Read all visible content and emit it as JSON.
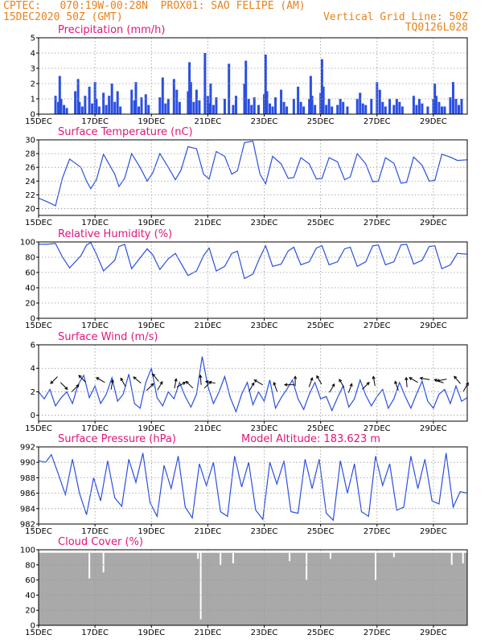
{
  "header": {
    "line1_left": "CPTEC:   070:19W-00:28N  PROX01: SAO FELIPE (AM)",
    "line2_left": "15DEC2020 50Z (GMT)",
    "line2_right": "Vertical Grid Line: 50Z",
    "line3_right": "TQ0126L028"
  },
  "colors": {
    "header": "#e8821c",
    "title": "#e0167a",
    "series": "#2b4fe0",
    "cloud": "#a9a9a9",
    "grid": "#999999"
  },
  "panels": [
    {
      "title": "Precipitation  (mm/h)",
      "extra": ""
    },
    {
      "title": "Surface Temperature  (nC)",
      "extra": ""
    },
    {
      "title": "Relative Humidity  (%)",
      "extra": ""
    },
    {
      "title": "Surface Wind  (m/s)",
      "extra": ""
    },
    {
      "title": "Surface Pressure  (hPa)",
      "extra": "Model Altitude: 183.623  m"
    },
    {
      "title": "Cloud Cover  (%)",
      "extra": ""
    }
  ],
  "x_tick_labels": [
    "15DEC",
    "17DEC",
    "19DEC",
    "21DEC",
    "23DEC",
    "25DEC",
    "27DEC",
    "29DEC"
  ],
  "x_tick_days": [
    0,
    2,
    4,
    6,
    8,
    10,
    12,
    14
  ],
  "x_range_days": [
    0,
    15.2
  ],
  "chart_data": [
    {
      "type": "bar",
      "name": "Precipitation",
      "ylabel": "mm/h",
      "ylim": [
        0,
        5
      ],
      "yticks": [
        0,
        1,
        2,
        3,
        4,
        5
      ],
      "x_days": [
        0.6,
        0.7,
        0.75,
        0.8,
        0.9,
        1.0,
        1.3,
        1.4,
        1.45,
        1.55,
        1.65,
        1.8,
        1.9,
        2.0,
        2.05,
        2.15,
        2.3,
        2.4,
        2.5,
        2.6,
        2.7,
        2.8,
        2.9,
        3.3,
        3.4,
        3.45,
        3.55,
        3.65,
        3.8,
        3.9,
        4.3,
        4.4,
        4.5,
        4.6,
        4.8,
        4.9,
        5.0,
        5.3,
        5.35,
        5.4,
        5.5,
        5.6,
        5.7,
        5.9,
        6.0,
        6.05,
        6.1,
        6.2,
        6.3,
        6.6,
        6.75,
        6.9,
        7.0,
        7.3,
        7.35,
        7.45,
        7.55,
        7.65,
        7.8,
        8.0,
        8.05,
        8.1,
        8.2,
        8.3,
        8.4,
        8.6,
        8.7,
        8.8,
        9.05,
        9.2,
        9.3,
        9.4,
        9.6,
        9.65,
        9.7,
        9.8,
        10.0,
        10.05,
        10.1,
        10.2,
        10.3,
        10.4,
        10.6,
        10.7,
        10.8,
        10.95,
        11.3,
        11.4,
        11.5,
        11.6,
        11.8,
        12.0,
        12.1,
        12.2,
        12.3,
        12.45,
        12.6,
        12.7,
        12.8,
        12.9,
        13.3,
        13.4,
        13.5,
        13.6,
        13.8,
        14.0,
        14.05,
        14.1,
        14.2,
        14.3,
        14.4,
        14.6,
        14.7,
        14.8,
        14.9,
        15.0
      ],
      "values": [
        1.2,
        0.8,
        2.5,
        1.0,
        0.6,
        0.4,
        1.5,
        2.3,
        0.8,
        0.5,
        1.2,
        1.8,
        0.7,
        2.1,
        1.0,
        0.5,
        1.4,
        0.6,
        1.2,
        2.0,
        0.8,
        1.5,
        0.5,
        1.6,
        0.9,
        2.1,
        0.5,
        1.1,
        1.3,
        0.6,
        1.1,
        2.4,
        0.7,
        1.0,
        2.3,
        1.6,
        0.8,
        1.5,
        3.4,
        2.1,
        0.8,
        1.6,
        0.9,
        4.0,
        1.2,
        0.7,
        2.0,
        0.6,
        1.1,
        1.0,
        3.3,
        0.6,
        1.2,
        2.0,
        3.5,
        1.0,
        0.6,
        1.1,
        0.6,
        1.3,
        3.9,
        1.5,
        0.7,
        0.5,
        1.1,
        1.6,
        0.8,
        0.5,
        1.0,
        1.8,
        0.8,
        0.5,
        1.0,
        2.5,
        1.2,
        0.6,
        1.4,
        3.6,
        1.8,
        0.6,
        1.0,
        0.5,
        0.6,
        1.0,
        0.8,
        0.5,
        1.0,
        1.4,
        0.7,
        0.6,
        1.0,
        2.1,
        1.6,
        0.8,
        0.5,
        1.0,
        0.6,
        1.0,
        0.8,
        0.5,
        1.2,
        0.6,
        1.0,
        0.7,
        0.5,
        1.0,
        2.0,
        1.2,
        0.8,
        0.5,
        0.5,
        1.1,
        2.1,
        1.0,
        0.6,
        1.0
      ]
    },
    {
      "type": "line",
      "name": "Surface Temperature",
      "ylabel": "nC",
      "ylim": [
        19,
        30
      ],
      "yticks": [
        20,
        22,
        24,
        26,
        28,
        30
      ],
      "x_days": [
        0,
        0.3,
        0.6,
        0.85,
        1.1,
        1.5,
        1.7,
        1.85,
        2.05,
        2.3,
        2.7,
        2.85,
        3.05,
        3.3,
        3.6,
        3.85,
        4.05,
        4.3,
        4.6,
        4.85,
        5.05,
        5.3,
        5.6,
        5.85,
        6.05,
        6.3,
        6.6,
        6.85,
        7.05,
        7.3,
        7.6,
        7.85,
        8.05,
        8.3,
        8.6,
        8.85,
        9.05,
        9.3,
        9.6,
        9.85,
        10.05,
        10.3,
        10.6,
        10.85,
        11.05,
        11.3,
        11.6,
        11.85,
        12.05,
        12.3,
        12.6,
        12.85,
        13.05,
        13.3,
        13.6,
        13.85,
        14.05,
        14.3,
        14.6,
        14.85,
        15.2
      ],
      "values": [
        21.5,
        21.0,
        20.4,
        24.5,
        27.2,
        26.0,
        24.0,
        22.9,
        24.2,
        27.9,
        25.0,
        23.2,
        24.4,
        28.0,
        26.0,
        24.0,
        25.2,
        28.0,
        26.0,
        24.2,
        25.6,
        29.0,
        28.7,
        25.0,
        24.3,
        28.3,
        27.6,
        25.0,
        25.5,
        29.6,
        29.8,
        25.0,
        23.6,
        27.6,
        26.5,
        24.4,
        24.5,
        27.4,
        26.5,
        24.3,
        24.4,
        27.4,
        26.8,
        24.2,
        24.6,
        28.0,
        26.5,
        23.9,
        24.0,
        27.4,
        26.6,
        23.7,
        23.8,
        27.5,
        26.3,
        24.0,
        24.1,
        27.9,
        27.5,
        27.0,
        27.1
      ]
    },
    {
      "type": "line",
      "name": "Relative Humidity",
      "ylabel": "%",
      "ylim": [
        0,
        100
      ],
      "yticks": [
        0,
        20,
        40,
        60,
        80,
        100
      ],
      "x_days": [
        0,
        0.3,
        0.6,
        0.85,
        1.1,
        1.5,
        1.7,
        1.85,
        2.05,
        2.3,
        2.7,
        2.85,
        3.05,
        3.3,
        3.6,
        3.85,
        4.05,
        4.3,
        4.6,
        4.85,
        5.05,
        5.3,
        5.6,
        5.85,
        6.05,
        6.3,
        6.6,
        6.85,
        7.05,
        7.3,
        7.6,
        7.85,
        8.05,
        8.3,
        8.6,
        8.85,
        9.05,
        9.3,
        9.6,
        9.85,
        10.05,
        10.3,
        10.6,
        10.85,
        11.05,
        11.3,
        11.6,
        11.85,
        12.05,
        12.3,
        12.6,
        12.85,
        13.05,
        13.3,
        13.6,
        13.85,
        14.05,
        14.3,
        14.6,
        14.85,
        15.2
      ],
      "values": [
        97,
        97,
        98,
        80,
        66,
        82,
        96,
        99,
        84,
        62,
        76,
        94,
        97,
        65,
        79,
        91,
        83,
        64,
        78,
        85,
        72,
        56,
        62,
        82,
        92,
        62,
        68,
        85,
        88,
        52,
        58,
        80,
        95,
        68,
        71,
        88,
        93,
        70,
        74,
        92,
        95,
        70,
        74,
        91,
        93,
        68,
        74,
        95,
        96,
        70,
        74,
        96,
        97,
        71,
        76,
        94,
        95,
        65,
        70,
        85,
        84
      ]
    },
    {
      "type": "line",
      "name": "Surface Wind",
      "ylabel": "m/s",
      "ylim": [
        -0.5,
        6
      ],
      "yticks": [
        0,
        2,
        4,
        6
      ],
      "x_days": [
        0,
        0.2,
        0.4,
        0.6,
        0.8,
        1.0,
        1.2,
        1.4,
        1.6,
        1.8,
        2.0,
        2.2,
        2.4,
        2.6,
        2.8,
        3.0,
        3.2,
        3.4,
        3.6,
        3.8,
        4.0,
        4.2,
        4.4,
        4.6,
        4.8,
        5.0,
        5.2,
        5.4,
        5.6,
        5.8,
        6.0,
        6.2,
        6.4,
        6.6,
        6.8,
        7.0,
        7.2,
        7.4,
        7.6,
        7.8,
        8.0,
        8.2,
        8.4,
        8.6,
        8.8,
        9.0,
        9.2,
        9.4,
        9.6,
        9.8,
        10.0,
        10.2,
        10.4,
        10.6,
        10.8,
        11.0,
        11.2,
        11.4,
        11.6,
        11.8,
        12.0,
        12.2,
        12.4,
        12.6,
        12.8,
        13.0,
        13.2,
        13.4,
        13.6,
        13.8,
        14.0,
        14.2,
        14.4,
        14.6,
        14.8,
        15.0,
        15.2
      ],
      "values": [
        2.0,
        1.4,
        2.2,
        0.8,
        1.5,
        2.0,
        1.0,
        2.6,
        3.4,
        1.5,
        2.5,
        1.0,
        1.8,
        3.2,
        1.2,
        1.8,
        3.5,
        1.0,
        0.6,
        2.8,
        4.0,
        1.5,
        0.8,
        2.0,
        1.4,
        2.8,
        1.6,
        0.7,
        1.8,
        5.0,
        2.5,
        1.0,
        2.0,
        3.3,
        1.5,
        0.3,
        1.8,
        2.8,
        0.9,
        2.0,
        1.2,
        3.0,
        0.6,
        1.5,
        2.2,
        3.0,
        1.4,
        0.5,
        1.8,
        2.8,
        1.4,
        1.6,
        0.4,
        1.5,
        2.5,
        0.7,
        1.4,
        3.0,
        1.7,
        0.8,
        1.6,
        2.2,
        0.6,
        1.4,
        2.8,
        1.6,
        0.6,
        1.8,
        2.9,
        1.2,
        0.6,
        1.8,
        2.2,
        1.0,
        2.5,
        1.2,
        1.5
      ]
    },
    {
      "type": "line",
      "name": "Surface Pressure",
      "ylabel": "hPa",
      "ylim": [
        982,
        992
      ],
      "yticks": [
        982,
        984,
        986,
        988,
        990,
        992
      ],
      "x_days": [
        0,
        0.25,
        0.45,
        0.7,
        0.95,
        1.2,
        1.45,
        1.7,
        1.95,
        2.2,
        2.45,
        2.7,
        2.95,
        3.2,
        3.45,
        3.7,
        3.95,
        4.2,
        4.45,
        4.7,
        4.95,
        5.2,
        5.45,
        5.7,
        5.95,
        6.2,
        6.45,
        6.7,
        6.95,
        7.2,
        7.45,
        7.7,
        7.95,
        8.2,
        8.45,
        8.7,
        8.95,
        9.2,
        9.45,
        9.7,
        9.95,
        10.2,
        10.45,
        10.7,
        10.95,
        11.2,
        11.45,
        11.7,
        11.95,
        12.2,
        12.45,
        12.7,
        12.95,
        13.2,
        13.45,
        13.7,
        13.95,
        14.2,
        14.45,
        14.7,
        14.95,
        15.2
      ],
      "values": [
        990.2,
        990.0,
        991.0,
        988.5,
        985.8,
        990.4,
        986.0,
        983.2,
        988.0,
        985.0,
        990.2,
        985.4,
        984.3,
        990.4,
        987.4,
        991.2,
        984.8,
        983.0,
        989.6,
        986.6,
        990.8,
        984.2,
        982.8,
        989.8,
        987.0,
        990.0,
        983.6,
        983.0,
        990.8,
        986.8,
        990.0,
        983.8,
        982.6,
        990.0,
        987.2,
        990.2,
        983.6,
        983.4,
        990.4,
        986.6,
        990.4,
        983.4,
        982.5,
        990.2,
        986.0,
        989.8,
        983.6,
        983.0,
        990.8,
        987.0,
        989.8,
        983.8,
        984.2,
        990.8,
        986.6,
        990.4,
        985.0,
        984.6,
        991.2,
        984.2,
        986.2,
        986.0
      ]
    },
    {
      "type": "bar",
      "name": "Cloud Cover",
      "ylabel": "%",
      "ylim": [
        0,
        100
      ],
      "yticks": [
        0,
        20,
        40,
        60,
        80,
        100
      ],
      "notes_dips_days": [
        1.8,
        2.3,
        5.65,
        5.75,
        6.45,
        6.9,
        8.9,
        9.5,
        10.35,
        11.95,
        12.6,
        14.65,
        15.05
      ],
      "dip_values": [
        62,
        70,
        88,
        8,
        80,
        82,
        85,
        60,
        88,
        60,
        90,
        80,
        82
      ],
      "base_value": 96
    }
  ],
  "wind_arrows": [
    {
      "day": 0.55,
      "deg": 225,
      "y": 3.0
    },
    {
      "day": 0.9,
      "deg": 135,
      "y": 2.5
    },
    {
      "day": 1.3,
      "deg": 45,
      "y": 2.3
    },
    {
      "day": 1.55,
      "deg": 315,
      "y": 3.1
    },
    {
      "day": 2.2,
      "deg": 300,
      "y": 3.0
    },
    {
      "day": 2.6,
      "deg": 10,
      "y": 2.6
    },
    {
      "day": 3.0,
      "deg": 330,
      "y": 2.8
    },
    {
      "day": 3.5,
      "deg": 310,
      "y": 3.0
    },
    {
      "day": 3.95,
      "deg": 45,
      "y": 2.4
    },
    {
      "day": 4.15,
      "deg": 320,
      "y": 3.2
    },
    {
      "day": 4.3,
      "deg": 30,
      "y": 2.5
    },
    {
      "day": 4.85,
      "deg": 10,
      "y": 2.7
    },
    {
      "day": 5.05,
      "deg": 60,
      "y": 2.6
    },
    {
      "day": 5.35,
      "deg": 315,
      "y": 2.6
    },
    {
      "day": 5.75,
      "deg": 355,
      "y": 3.0
    },
    {
      "day": 6.0,
      "deg": 45,
      "y": 2.6
    },
    {
      "day": 6.1,
      "deg": 280,
      "y": 2.8
    },
    {
      "day": 7.55,
      "deg": 30,
      "y": 2.4
    },
    {
      "day": 7.8,
      "deg": 300,
      "y": 2.8
    },
    {
      "day": 8.4,
      "deg": 340,
      "y": 2.4
    },
    {
      "day": 8.9,
      "deg": 270,
      "y": 2.6
    },
    {
      "day": 9.1,
      "deg": 0,
      "y": 2.9
    },
    {
      "day": 9.65,
      "deg": 20,
      "y": 2.8
    },
    {
      "day": 9.95,
      "deg": 330,
      "y": 3.0
    },
    {
      "day": 10.4,
      "deg": 30,
      "y": 2.3
    },
    {
      "day": 10.75,
      "deg": 330,
      "y": 2.7
    },
    {
      "day": 11.05,
      "deg": 20,
      "y": 2.3
    },
    {
      "day": 11.6,
      "deg": 45,
      "y": 2.5
    },
    {
      "day": 11.9,
      "deg": 350,
      "y": 2.9
    },
    {
      "day": 12.7,
      "deg": 340,
      "y": 2.5
    },
    {
      "day": 13.05,
      "deg": 355,
      "y": 2.8
    },
    {
      "day": 13.3,
      "deg": 300,
      "y": 3.0
    },
    {
      "day": 13.7,
      "deg": 280,
      "y": 3.1
    },
    {
      "day": 14.2,
      "deg": 290,
      "y": 2.9
    },
    {
      "day": 14.3,
      "deg": 260,
      "y": 3.0
    },
    {
      "day": 14.85,
      "deg": 320,
      "y": 3.0
    },
    {
      "day": 15.15,
      "deg": 30,
      "y": 2.4
    }
  ]
}
